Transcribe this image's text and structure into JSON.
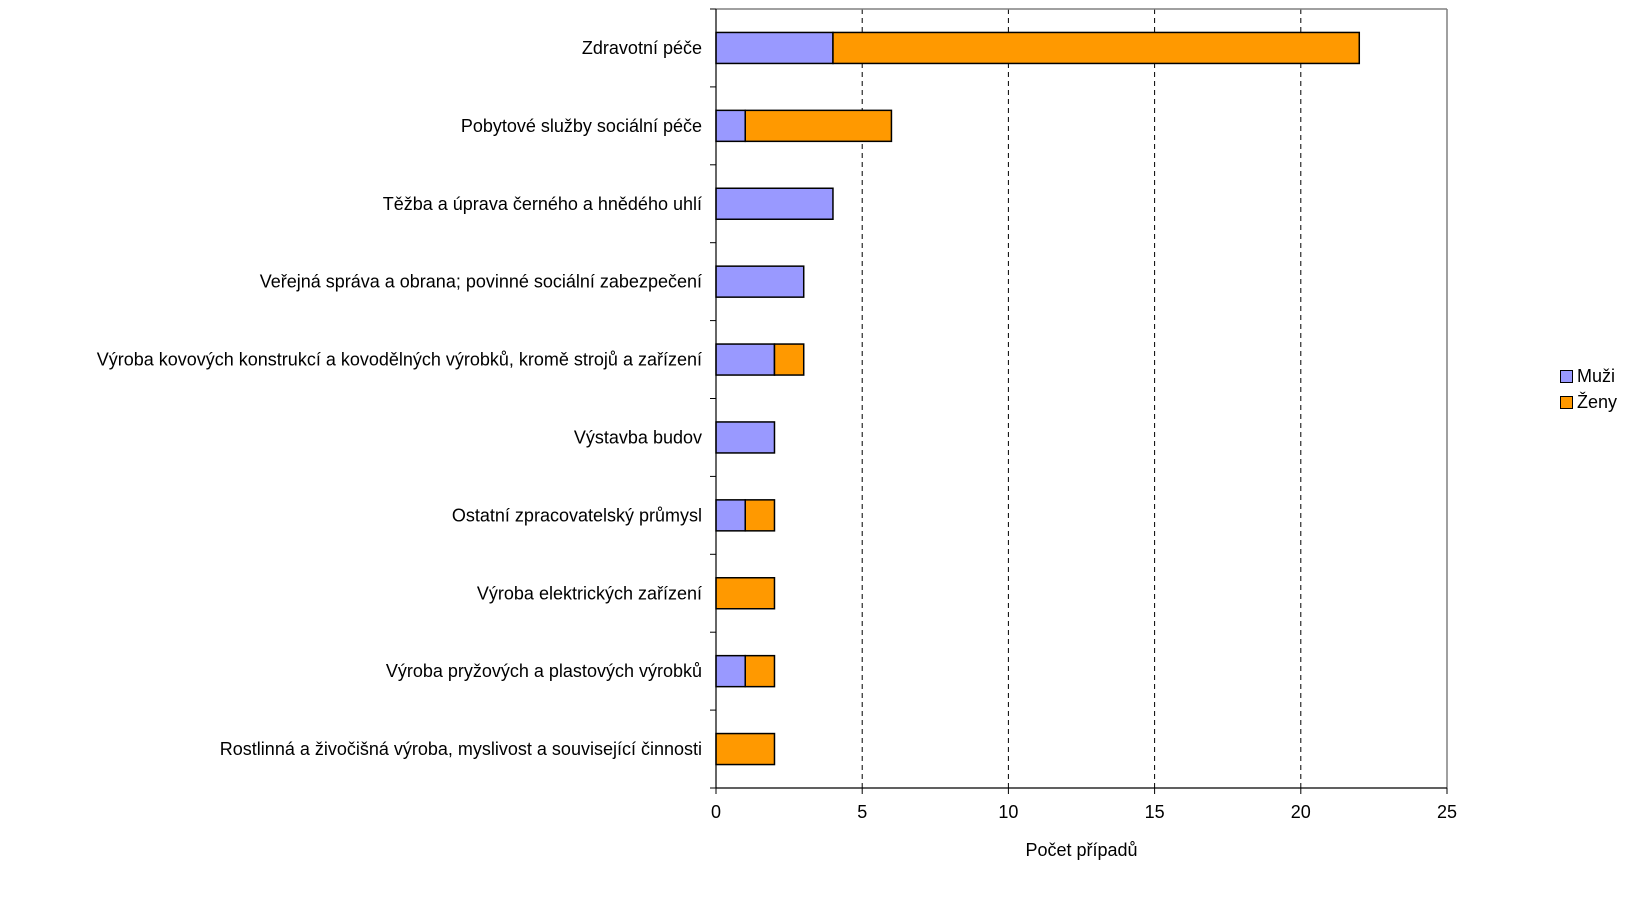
{
  "chart_data": {
    "type": "bar",
    "orientation": "horizontal",
    "stacked": true,
    "categories": [
      "Zdravotní péče",
      "Pobytové služby sociální péče",
      "Těžba a úprava černého a hnědého uhlí ",
      "Veřejná správa a obrana; povinné sociální zabezpečení",
      "Výroba kovových konstrukcí a kovodělných výrobků, kromě strojů a zařízení",
      "Výstavba budov",
      "Ostatní zpracovatelský průmysl",
      "Výroba elektrických zařízení",
      "Výroba pryžových a plastových výrobků",
      "Rostlinná a živočišná výroba, myslivost a související činnosti"
    ],
    "series": [
      {
        "name": "Muži",
        "color": "#9999ff",
        "values": [
          4,
          1,
          4,
          3,
          2,
          2,
          1,
          0,
          1,
          0
        ]
      },
      {
        "name": "Ženy",
        "color": "#ff9900",
        "values": [
          18,
          5,
          0,
          0,
          1,
          0,
          1,
          2,
          1,
          2
        ]
      }
    ],
    "xlabel": "Počet případů",
    "ylabel": "",
    "xlim": [
      0,
      25
    ],
    "xticks": [
      "0",
      "5",
      "10",
      "15",
      "20",
      "25"
    ],
    "grid": "vertical dashed",
    "legend_position": "right"
  }
}
